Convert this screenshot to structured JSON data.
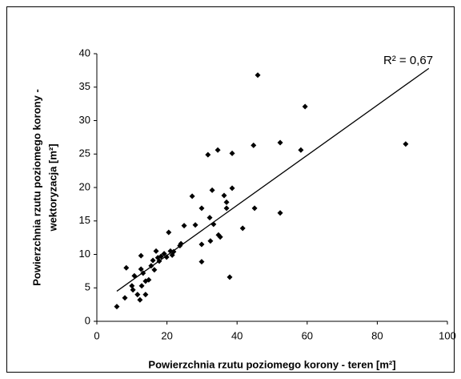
{
  "chart_data": {
    "type": "scatter",
    "annotation": "R² = 0,67",
    "xlabel": "Powierzchnia rzutu poziomego korony - teren [m²]",
    "ylabel": [
      "Powierzchnia rzutu poziomego korony -",
      "wektoryzacja [m²]"
    ],
    "color": "#000000",
    "x": [
      5.7,
      8.0,
      8.4,
      10.0,
      10.3,
      10.7,
      11.6,
      12.3,
      12.6,
      12.6,
      12.8,
      13.2,
      13.9,
      13.9,
      14.8,
      15.5,
      16.0,
      16.4,
      16.9,
      17.4,
      17.8,
      18.3,
      19.2,
      19.9,
      20.5,
      21.0,
      21.5,
      21.9,
      23.7,
      24.0,
      24.9,
      27.2,
      28.1,
      29.9,
      29.9,
      29.9,
      31.7,
      32.2,
      32.4,
      32.9,
      33.3,
      34.5,
      34.7,
      35.2,
      36.3,
      37.0,
      37.0,
      37.9,
      38.6,
      38.6,
      41.6,
      44.7,
      45.0,
      45.9,
      52.3,
      52.3,
      58.2,
      59.4,
      88.1
    ],
    "y": [
      2.2,
      3.5,
      8.0,
      5.3,
      4.7,
      6.8,
      4.0,
      3.2,
      7.8,
      9.8,
      5.3,
      7.2,
      4.0,
      6.0,
      6.2,
      8.3,
      9.1,
      7.7,
      10.5,
      9.5,
      9.0,
      9.7,
      10.1,
      9.6,
      13.3,
      10.5,
      9.9,
      10.4,
      11.3,
      11.6,
      14.3,
      18.7,
      14.4,
      16.9,
      11.5,
      8.9,
      24.9,
      15.5,
      12.0,
      19.6,
      14.5,
      25.6,
      12.9,
      12.6,
      18.8,
      17.8,
      16.9,
      6.6,
      19.9,
      25.1,
      13.9,
      26.3,
      16.9,
      36.8,
      26.7,
      16.2,
      25.6,
      32.1,
      26.5
    ],
    "trendline": {
      "x": [
        5.7,
        94.7
      ],
      "y": [
        4.5,
        37.8
      ]
    },
    "xlim": [
      0,
      100
    ],
    "xticks": [
      0,
      20,
      40,
      60,
      80,
      100
    ],
    "ylim": [
      0,
      40
    ],
    "yticks": [
      0,
      5,
      10,
      15,
      20,
      25,
      30,
      35,
      40
    ],
    "grid": false
  }
}
